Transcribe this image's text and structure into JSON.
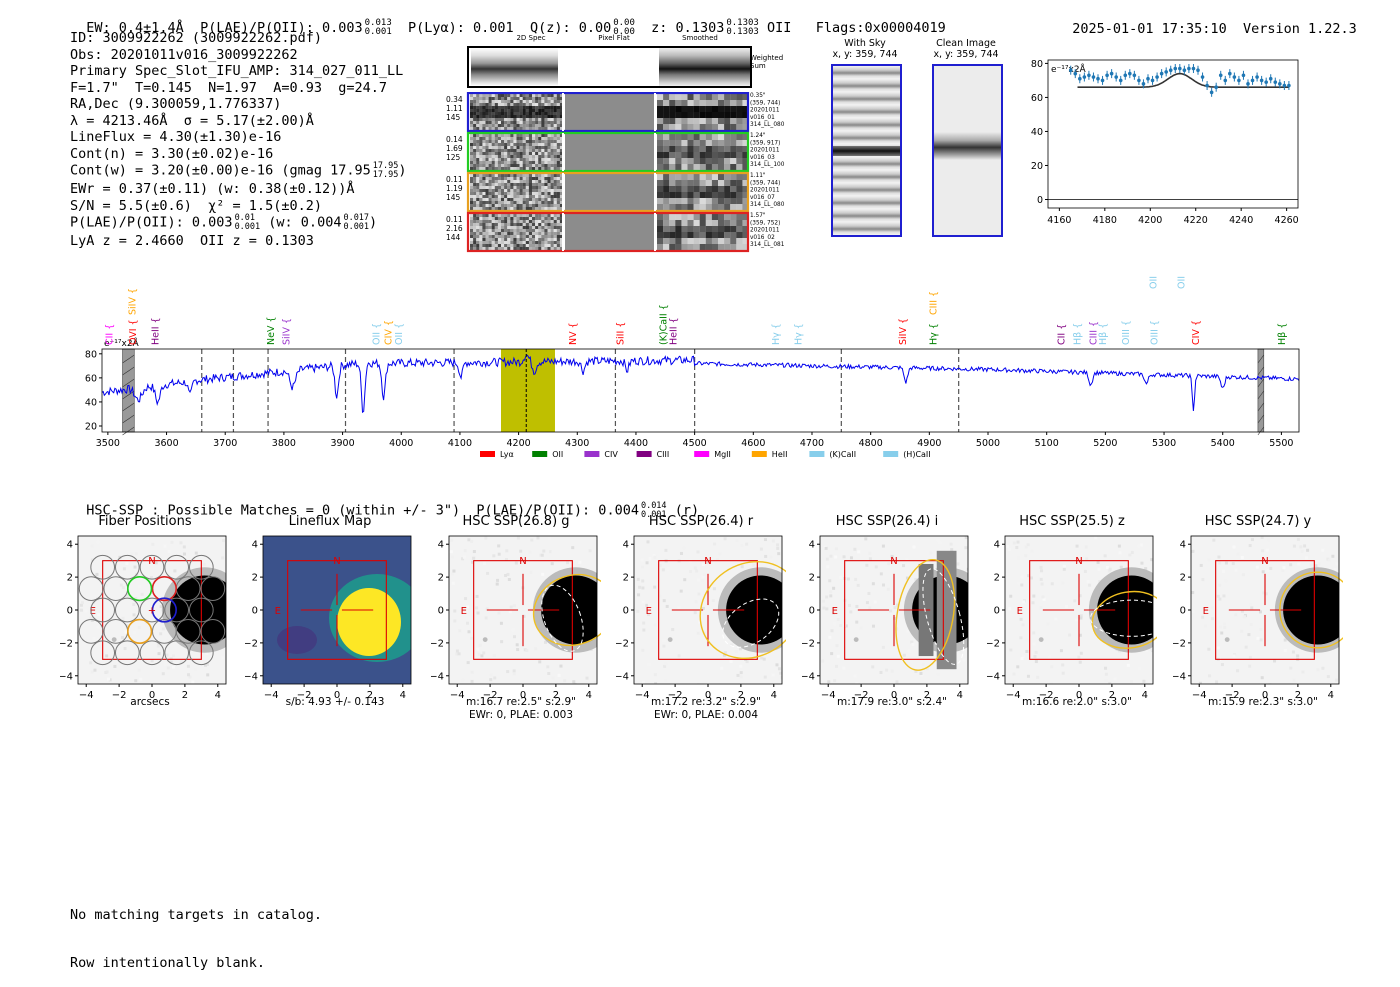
{
  "header": {
    "ew": "EW: 0.4±1.4Å",
    "plae": "P(LAE)/P(OII): 0.003",
    "plae_hi": "0.013",
    "plae_lo": "0.001",
    "plya": "P(Lyα): 0.001",
    "qz": "Q(z): 0.00",
    "qz_hi": "0.00",
    "qz_lo": "0.00",
    "z": "z: 0.1303",
    "z_hi": "0.1303",
    "z_lo": "0.1303",
    "z_line": "OII",
    "flags": "Flags:0x00004019",
    "timestamp": "2025-01-01 17:35:10",
    "version": "Version 1.22.3"
  },
  "info": {
    "id": "ID: 3009922262 (3009922262.pdf)",
    "obs": "Obs: 20201011v016_3009922262",
    "primary": "Primary Spec_Slot_IFU_AMP: 314_027_011_LL",
    "fwhm": "F=1.7\"  T=0.145  N=1.97  A=0.93  g=24.7",
    "radec": "RA,Dec (9.300059,1.776337)",
    "lambda": "λ = 4213.46Å  σ = 5.17(±2.00)Å",
    "lineflux": "LineFlux = 4.30(±1.30)e-16",
    "contn": "Cont(n) = 3.30(±0.02)e-16",
    "contw": "Cont(w) = 3.20(±0.00)e-16 (gmag 17.95",
    "contw_hi": "17.95",
    "contw_lo": "17.95",
    "ewr": "EWr = 0.37(±0.11) (w: 0.38(±0.12))Å",
    "sn": "S/N = 5.5(±0.6)  χ² = 1.5(±0.2)",
    "plae2": "P(LAE)/P(OII): 0.003",
    "plae2_hi": "0.01",
    "plae2_lo": "0.001",
    "plae2_w": "(w: 0.004",
    "plae2_w_hi": "0.017",
    "plae2_w_lo": "0.001",
    "lyaz": "LyA z = 2.4660  OII z = 0.1303"
  },
  "cutouts": {
    "col_labels": [
      "2D Spec",
      "Pixel Flat",
      "Smoothed"
    ],
    "weighted_label": "Weighted Sum",
    "rows": [
      {
        "left": [
          "0.34",
          "1.11",
          "145"
        ],
        "right": [
          "0.35\"",
          "(359, 744)",
          "20201011",
          "v016_01",
          "314_LL_080"
        ],
        "color": "#1f1fd0"
      },
      {
        "left": [
          "0.14",
          "1.69",
          "125"
        ],
        "right": [
          "1.24\"",
          "(359, 917)",
          "20201011",
          "v016_03",
          "314_LL_100"
        ],
        "color": "#22cc22"
      },
      {
        "left": [
          "0.11",
          "1.19",
          "145"
        ],
        "right": [
          "1.11\"",
          "(359, 744)",
          "20201011",
          "v016_07",
          "314_LL_080"
        ],
        "color": "#e8a020"
      },
      {
        "left": [
          "0.11",
          "2.16",
          "144"
        ],
        "right": [
          "1.57\"",
          "(359, 752)",
          "20201011",
          "v016_02",
          "314_LL_081"
        ],
        "color": "#dd2222"
      }
    ]
  },
  "sky": {
    "with_sky_title": "With Sky",
    "with_sky_xy": "x, y: 359, 744",
    "clean_title": "Clean Image",
    "clean_xy": "x, y: 359, 744"
  },
  "zoom_plot": {
    "unit_label": "e⁻¹⁷x2Å",
    "x_ticks": [
      "4160",
      "4180",
      "4200",
      "4220",
      "4240",
      "4260"
    ],
    "y_ticks": [
      "80",
      "60",
      "40",
      "20",
      "0"
    ],
    "xlim": [
      4155,
      4265
    ],
    "ylim": [
      -5,
      82
    ],
    "points": [
      [
        4165,
        76
      ],
      [
        4167,
        74
      ],
      [
        4169,
        71
      ],
      [
        4171,
        72
      ],
      [
        4173,
        73
      ],
      [
        4175,
        72
      ],
      [
        4177,
        71
      ],
      [
        4179,
        70
      ],
      [
        4181,
        73
      ],
      [
        4183,
        74
      ],
      [
        4185,
        72
      ],
      [
        4187,
        70
      ],
      [
        4189,
        73
      ],
      [
        4191,
        74
      ],
      [
        4193,
        73
      ],
      [
        4195,
        70
      ],
      [
        4197,
        68
      ],
      [
        4199,
        71
      ],
      [
        4201,
        70
      ],
      [
        4203,
        72
      ],
      [
        4205,
        74
      ],
      [
        4207,
        75
      ],
      [
        4209,
        76
      ],
      [
        4211,
        77
      ],
      [
        4213,
        77
      ],
      [
        4215,
        76
      ],
      [
        4217,
        77
      ],
      [
        4219,
        77
      ],
      [
        4221,
        76
      ],
      [
        4223,
        72
      ],
      [
        4225,
        67
      ],
      [
        4227,
        63
      ],
      [
        4229,
        66
      ],
      [
        4231,
        73
      ],
      [
        4233,
        70
      ],
      [
        4235,
        74
      ],
      [
        4237,
        72
      ],
      [
        4239,
        70
      ],
      [
        4241,
        73
      ],
      [
        4243,
        68
      ],
      [
        4245,
        70
      ],
      [
        4247,
        72
      ],
      [
        4249,
        70
      ],
      [
        4251,
        69
      ],
      [
        4253,
        71
      ],
      [
        4255,
        69
      ],
      [
        4257,
        68
      ],
      [
        4259,
        67
      ],
      [
        4261,
        67
      ]
    ],
    "fit": {
      "base": 66,
      "amp": 8,
      "center": 4213,
      "sigma": 5.2,
      "x0": 4168,
      "x1": 4261
    }
  },
  "line_labels": [
    {
      "name": "CII",
      "x": 3502,
      "color": "#ff00ff",
      "row": 2
    },
    {
      "name": "SiIV",
      "x": 3541,
      "color": "#ffa500",
      "row": 0
    },
    {
      "name": "OVI",
      "x": 3542,
      "color": "#ff0000",
      "row": 2
    },
    {
      "name": "HeII",
      "x": 3580,
      "color": "#800080",
      "row": 2
    },
    {
      "name": "NeV",
      "x": 3777,
      "color": "#008000",
      "row": 2
    },
    {
      "name": "SiIV",
      "x": 3804,
      "color": "#9932cc",
      "row": 2
    },
    {
      "name": "OII",
      "x": 3957,
      "color": "#87ceeb",
      "row": 2
    },
    {
      "name": "CIV",
      "x": 3977,
      "color": "#ffa500",
      "row": 2
    },
    {
      "name": "OII",
      "x": 3995,
      "color": "#87ceeb",
      "row": 2
    },
    {
      "name": "NV",
      "x": 4292,
      "color": "#ff0000",
      "row": 2
    },
    {
      "name": "SiII",
      "x": 4373,
      "color": "#ff0000",
      "row": 2
    },
    {
      "name": "(K)CaII",
      "x": 4446,
      "color": "#008000",
      "row": 2
    },
    {
      "name": "HeII",
      "x": 4463,
      "color": "#800080",
      "row": 2
    },
    {
      "name": "Hγ",
      "x": 4638,
      "color": "#87ceeb",
      "row": 2
    },
    {
      "name": "Hγ",
      "x": 4676,
      "color": "#87ceeb",
      "row": 2
    },
    {
      "name": "SiIV",
      "x": 4854,
      "color": "#ff0000",
      "row": 2
    },
    {
      "name": "CIII",
      "x": 4906,
      "color": "#ffa500",
      "row": 0
    },
    {
      "name": "Hγ",
      "x": 4906,
      "color": "#008000",
      "row": 2
    },
    {
      "name": "CII",
      "x": 5124,
      "color": "#800080",
      "row": 2
    },
    {
      "name": "Hβ",
      "x": 5152,
      "color": "#87ceeb",
      "row": 2
    },
    {
      "name": "CIII",
      "x": 5179,
      "color": "#9932cc",
      "row": 2
    },
    {
      "name": "Hβ",
      "x": 5195,
      "color": "#87ceeb",
      "row": 2
    },
    {
      "name": "OIII",
      "x": 5234,
      "color": "#87ceeb",
      "row": 2
    },
    {
      "name": "OIII",
      "x": 5281,
      "color": "#87ceeb",
      "row": 1
    },
    {
      "name": "OIII",
      "x": 5283,
      "color": "#87ceeb",
      "row": 2
    },
    {
      "name": "OIII",
      "x": 5329,
      "color": "#87ceeb",
      "row": 1
    },
    {
      "name": "CIV",
      "x": 5354,
      "color": "#ff0000",
      "row": 2
    },
    {
      "name": "Hβ",
      "x": 5500,
      "color": "#008000",
      "row": 2
    }
  ],
  "full_spec": {
    "unit_label": "e⁻¹⁷x2Å",
    "x_ticks": [
      "3500",
      "3600",
      "3700",
      "3800",
      "3900",
      "4000",
      "4100",
      "4200",
      "4300",
      "4400",
      "4500",
      "4600",
      "4700",
      "4800",
      "4900",
      "5000",
      "5100",
      "5200",
      "5300",
      "5400",
      "5500"
    ],
    "y_ticks": [
      "80",
      "60",
      "40",
      "20"
    ],
    "xlim": [
      3490,
      5530
    ],
    "ylim": [
      15,
      84
    ],
    "highlight": [
      4170,
      4262
    ],
    "detect_line": 4213,
    "dashed_lines": [
      3660,
      3714,
      3773,
      3905,
      4090,
      4365,
      4500,
      4750,
      4950
    ],
    "hatched": [
      [
        3525,
        3545
      ],
      [
        5460,
        5470
      ]
    ],
    "legend": [
      {
        "name": "Lyα",
        "color": "#ff0000"
      },
      {
        "name": "OII",
        "color": "#008000"
      },
      {
        "name": "CIV",
        "color": "#9932cc"
      },
      {
        "name": "CIII",
        "color": "#800080"
      },
      {
        "name": "MgII",
        "color": "#ff00ff"
      },
      {
        "name": "HeII",
        "color": "#ffa500"
      },
      {
        "name": "(K)CaII",
        "color": "#87ceeb"
      },
      {
        "name": "(H)CaII",
        "color": "#87ceeb"
      }
    ]
  },
  "hsc_line": {
    "prefix": "HSC-SSP : Possible Matches = 0 (within +/- 3\")  P(LAE)/P(OII): 0.004",
    "hi": "0.014",
    "lo": "0.001",
    "suffix": "(r)"
  },
  "panels": [
    {
      "title": "Fiber Positions",
      "cap1": "arcsecs",
      "cap2": ""
    },
    {
      "title": "Lineflux Map",
      "cap1": "s/b: 4.93 +/- 0.143",
      "cap2": ""
    },
    {
      "title": "HSC SSP(26.8) g",
      "cap1": "m:16.7  re:2.5\"  s:2.9\"",
      "cap2": "EWr: 0, PLAE: 0.003"
    },
    {
      "title": "HSC SSP(26.4) r",
      "cap1": "m:17.2  re:3.2\"  s:2.9\"",
      "cap2": "EWr: 0, PLAE: 0.004"
    },
    {
      "title": "HSC SSP(26.4) i",
      "cap1": "m:17.9  re:3.0\"  s:2.4\"",
      "cap2": ""
    },
    {
      "title": "HSC SSP(25.5) z",
      "cap1": "m:16.6  re:2.0\"  s:3.0\"",
      "cap2": ""
    },
    {
      "title": "HSC SSP(24.7) y",
      "cap1": "m:15.9  re:2.3\"  s:3.0\"",
      "cap2": ""
    }
  ],
  "panel_axes": {
    "x_ticks": [
      "−4",
      "−2",
      "0",
      "2",
      "4"
    ],
    "y_ticks": [
      "4",
      "2",
      "0",
      "−2",
      "−4"
    ],
    "north": "N",
    "east": "E"
  },
  "footer": {
    "line1": "No matching targets in catalog.",
    "line2": "Row intentionally blank."
  }
}
